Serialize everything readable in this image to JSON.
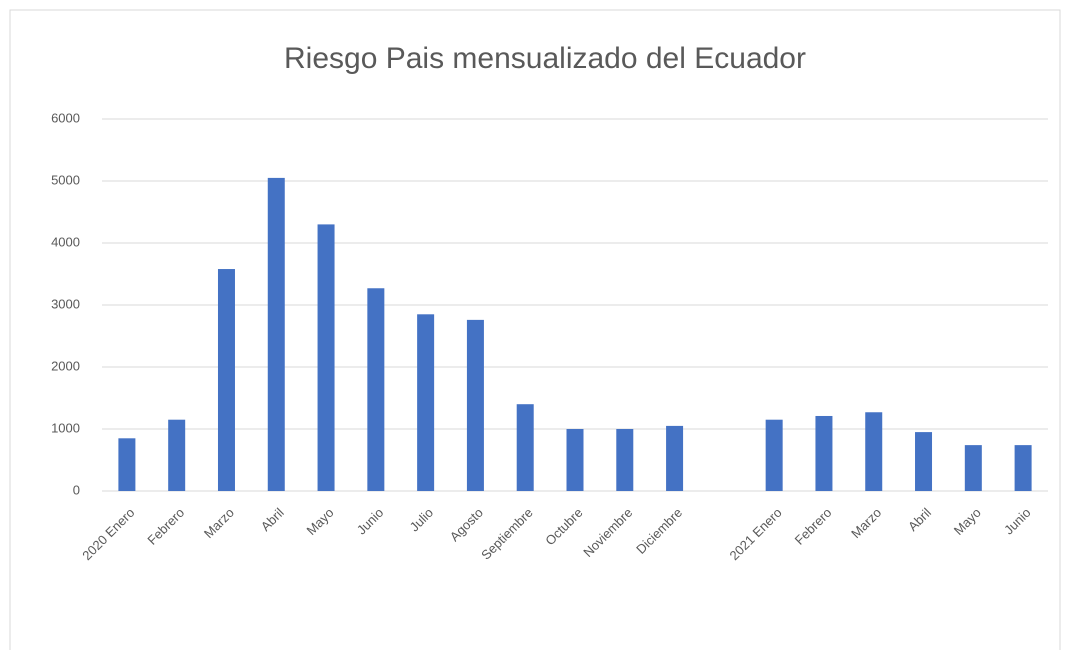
{
  "chart_data": {
    "type": "bar",
    "title": "Riesgo Pais mensualizado del Ecuador",
    "categories": [
      "2020 Enero",
      "Febrero",
      "Marzo",
      "Abril",
      "Mayo",
      "Junio",
      "Julio",
      "Agosto",
      "Septiembre",
      "Octubre",
      "Noviembre",
      "Diciembre",
      null,
      "2021 Enero",
      "Febrero",
      "Marzo",
      "Abril",
      "Mayo",
      "Junio"
    ],
    "values": [
      850,
      1150,
      3580,
      5050,
      4300,
      3270,
      2850,
      2760,
      1400,
      1000,
      1000,
      1050,
      null,
      1150,
      1210,
      1270,
      950,
      740,
      740
    ],
    "color": "#4472c4",
    "ylim": [
      0,
      6000
    ],
    "yticks": [
      0,
      1000,
      2000,
      3000,
      4000,
      5000,
      6000
    ],
    "grid": true
  }
}
